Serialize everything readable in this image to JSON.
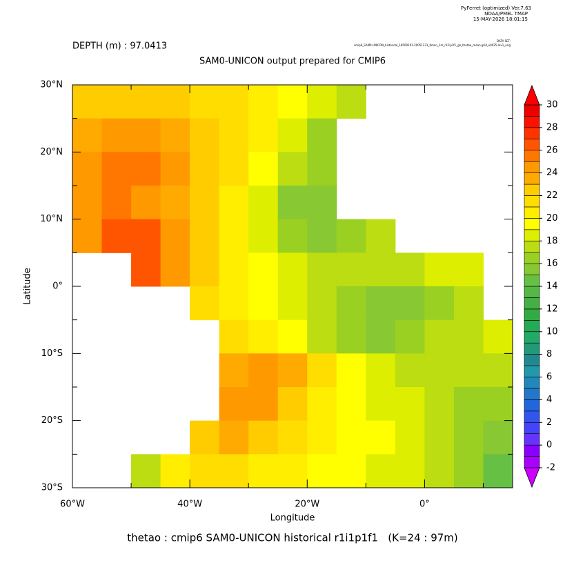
{
  "chart_data": {
    "type": "heatmap",
    "header": [
      "PyFerret (optimized) Ver.7.63",
      "NOAA/PMEL TMAP",
      "15-MAY-2026 18:01:15"
    ],
    "depth_label": "DEPTH (m) : 97.0413",
    "dataset_label": "DATA SET:",
    "dataset": "cmip6_SAM0-UNICON_historical_18500101-20051231_0mon_1m_r1i1p1f1_gn_thetao_mean.grid_x0025-lev1_orig",
    "title": "SAM0-UNICON output prepared for CMIP6",
    "xlabel": "Longitude",
    "ylabel": "Latitude",
    "footer": "thetao : cmip6 SAM0-UNICON historical r1i1p1f1   (K=24 : 97m)",
    "xlim": [
      -60,
      15
    ],
    "ylim": [
      -30,
      30
    ],
    "xticks": [
      {
        "value": -60,
        "label": "60°W"
      },
      {
        "value": -40,
        "label": "40°W"
      },
      {
        "value": -20,
        "label": "20°W"
      },
      {
        "value": 0,
        "label": "0°"
      }
    ],
    "xminor": [
      -50,
      -30,
      -10,
      10
    ],
    "yticks": [
      {
        "value": 30,
        "label": "30°N"
      },
      {
        "value": 20,
        "label": "20°N"
      },
      {
        "value": 10,
        "label": "10°N"
      },
      {
        "value": 0,
        "label": "0°"
      },
      {
        "value": -10,
        "label": "10°S"
      },
      {
        "value": -20,
        "label": "20°S"
      },
      {
        "value": -30,
        "label": "30°S"
      }
    ],
    "yminor": [
      25,
      15,
      5,
      -5,
      -15,
      -25
    ],
    "x": [
      -57.5,
      -52.5,
      -47.5,
      -42.5,
      -37.5,
      -32.5,
      -27.5,
      -22.5,
      -17.5,
      -12.5,
      -7.5,
      -2.5,
      2.5,
      7.5,
      12.5
    ],
    "y": [
      27.5,
      22.5,
      17.5,
      12.5,
      7.5,
      2.5,
      -2.5,
      -7.5,
      -12.5,
      -17.5,
      -22.5,
      -27.5
    ],
    "values": [
      [
        22,
        22,
        22,
        22,
        21,
        21,
        20,
        19,
        18,
        17,
        null,
        null,
        null,
        null,
        null
      ],
      [
        23,
        24,
        24,
        23,
        22,
        21,
        20,
        18,
        16,
        null,
        null,
        null,
        null,
        null,
        null
      ],
      [
        24,
        25,
        25,
        24,
        22,
        21,
        19,
        17,
        16,
        null,
        null,
        null,
        null,
        null,
        null
      ],
      [
        24,
        25,
        24,
        23,
        22,
        20,
        18,
        15,
        15,
        null,
        null,
        null,
        null,
        null,
        null
      ],
      [
        24,
        26,
        26,
        24,
        22,
        20,
        18,
        16,
        15,
        16,
        17,
        null,
        null,
        null,
        null
      ],
      [
        null,
        null,
        26,
        24,
        22,
        20,
        19,
        18,
        17,
        17,
        17,
        17,
        18,
        18,
        null
      ],
      [
        null,
        null,
        null,
        null,
        21,
        20,
        19,
        18,
        17,
        16,
        15,
        15,
        16,
        17,
        null
      ],
      [
        null,
        null,
        null,
        null,
        null,
        21,
        20,
        19,
        17,
        16,
        15,
        16,
        17,
        17,
        18
      ],
      [
        null,
        null,
        null,
        null,
        null,
        23,
        24,
        23,
        21,
        19,
        18,
        17,
        17,
        17,
        17
      ],
      [
        null,
        null,
        null,
        null,
        null,
        24,
        24,
        22,
        20,
        19,
        18,
        18,
        17,
        16,
        16
      ],
      [
        null,
        null,
        null,
        null,
        22,
        23,
        22,
        21,
        20,
        19,
        19,
        18,
        17,
        16,
        15
      ],
      [
        null,
        null,
        17,
        20,
        21,
        21,
        20,
        20,
        19,
        19,
        18,
        18,
        17,
        16,
        14
      ]
    ],
    "clim": [
      -2,
      30
    ],
    "cticks": [
      -2,
      0,
      2,
      4,
      6,
      8,
      10,
      12,
      14,
      16,
      18,
      20,
      22,
      24,
      26,
      28,
      30
    ],
    "colors": [
      "#aa00ff",
      "#8800ff",
      "#6633ff",
      "#4444ff",
      "#3355ee",
      "#2266dd",
      "#2277cc",
      "#2288bb",
      "#2299aa",
      "#22888f",
      "#229977",
      "#22aa66",
      "#22aa55",
      "#33aa44",
      "#44b044",
      "#55b844",
      "#66c044",
      "#88c833",
      "#99d022",
      "#bbdd11",
      "#ddee00",
      "#ffff00",
      "#ffee00",
      "#ffdd00",
      "#ffcc00",
      "#ffaa00",
      "#ff9900",
      "#ff7700",
      "#ff5500",
      "#ff3300",
      "#ff1100",
      "#ee0000"
    ],
    "under_color": "#cc00ff",
    "over_color": "#ff0000"
  }
}
